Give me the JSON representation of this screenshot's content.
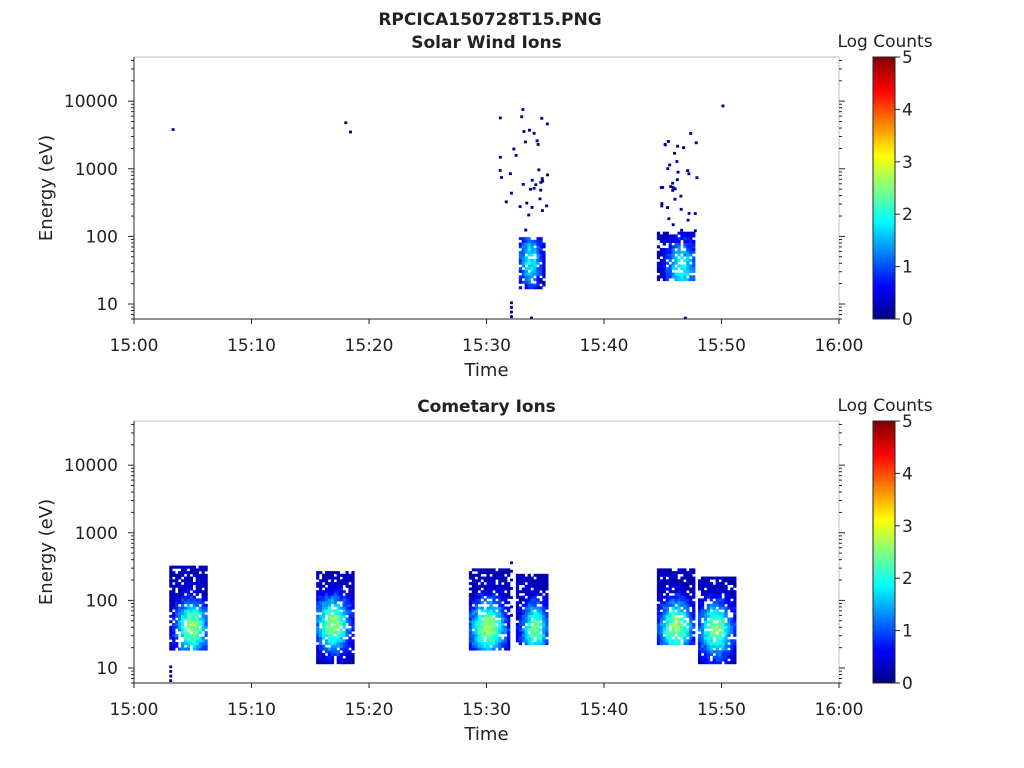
{
  "figure_title": "RPCICA150728T15.PNG",
  "chart_data": [
    {
      "type": "heatmap",
      "title": "Solar Wind Ions",
      "xlabel": "Time",
      "ylabel": "Energy (eV)",
      "x_ticks": [
        "15:00",
        "15:10",
        "15:20",
        "15:30",
        "15:40",
        "15:50",
        "16:00"
      ],
      "xlim": [
        "15:00",
        "16:00"
      ],
      "y_scale": "log",
      "y_ticks": [
        "10",
        "100",
        "1000",
        "10000"
      ],
      "ylim": [
        6,
        45000
      ],
      "colorbar": {
        "label": "Log Counts",
        "ticks": [
          "0",
          "1",
          "2",
          "3",
          "4",
          "5"
        ],
        "range": [
          0,
          5
        ],
        "colormap": "jet"
      },
      "grid": false,
      "blobs": [
        {
          "t0": 32.6,
          "t1": 34.8,
          "e0": 17,
          "e1": 100,
          "peak": 1.9,
          "tpeak": 33.6,
          "epeak": 45,
          "density": 0.75
        },
        {
          "t0": 44.5,
          "t1": 47.5,
          "e0": 22,
          "e1": 120,
          "peak": 1.9,
          "tpeak": 46.5,
          "epeak": 35,
          "density": 0.75
        }
      ],
      "scatter": [
        {
          "t0": 31.0,
          "t1": 35.3,
          "e0": 120,
          "e1": 8500,
          "n": 38,
          "v": 0.1
        },
        {
          "t0": 44.6,
          "t1": 47.8,
          "e0": 120,
          "e1": 3500,
          "n": 36,
          "v": 0.1
        }
      ],
      "points": [
        {
          "t": 3.2,
          "e": 3800,
          "v": 0.1
        },
        {
          "t": 17.9,
          "e": 4800,
          "v": 0.1
        },
        {
          "t": 18.3,
          "e": 3500,
          "v": 0.1
        },
        {
          "t": 50.0,
          "e": 8500,
          "v": 0.1
        },
        {
          "t": 32.0,
          "e": 6.5,
          "v": 0.1
        },
        {
          "t": 32.0,
          "e": 7.6,
          "v": 0.1
        },
        {
          "t": 32.0,
          "e": 8.9,
          "v": 0.1
        },
        {
          "t": 32.0,
          "e": 10.4,
          "v": 0.1
        },
        {
          "t": 33.7,
          "e": 6.2,
          "v": 0.1
        },
        {
          "t": 46.8,
          "e": 6.2,
          "v": 0.1
        }
      ]
    },
    {
      "type": "heatmap",
      "title": "Cometary Ions",
      "xlabel": "Time",
      "ylabel": "Energy (eV)",
      "x_ticks": [
        "15:00",
        "15:10",
        "15:20",
        "15:30",
        "15:40",
        "15:50",
        "16:00"
      ],
      "xlim": [
        "15:00",
        "16:00"
      ],
      "y_scale": "log",
      "y_ticks": [
        "10",
        "100",
        "1000",
        "10000"
      ],
      "ylim": [
        6,
        45000
      ],
      "colorbar": {
        "label": "Log Counts",
        "ticks": [
          "0",
          "1",
          "2",
          "3",
          "4",
          "5"
        ],
        "range": [
          0,
          5
        ],
        "colormap": "jet"
      },
      "grid": false,
      "blobs": [
        {
          "t0": 3.0,
          "t1": 6.0,
          "e0": 18,
          "e1": 320,
          "peak": 2.6,
          "tpeak": 4.8,
          "epeak": 40,
          "density": 0.85
        },
        {
          "t0": 15.5,
          "t1": 18.7,
          "e0": 12,
          "e1": 260,
          "peak": 2.6,
          "tpeak": 16.8,
          "epeak": 45,
          "density": 0.85
        },
        {
          "t0": 28.4,
          "t1": 31.8,
          "e0": 18,
          "e1": 300,
          "peak": 2.6,
          "tpeak": 30.0,
          "epeak": 40,
          "density": 0.85
        },
        {
          "t0": 32.5,
          "t1": 35.0,
          "e0": 22,
          "e1": 240,
          "peak": 2.4,
          "tpeak": 34.0,
          "epeak": 38,
          "density": 0.85
        },
        {
          "t0": 44.5,
          "t1": 47.6,
          "e0": 22,
          "e1": 300,
          "peak": 2.6,
          "tpeak": 46.0,
          "epeak": 40,
          "density": 0.85
        },
        {
          "t0": 47.8,
          "t1": 51.0,
          "e0": 12,
          "e1": 230,
          "peak": 2.5,
          "tpeak": 49.4,
          "epeak": 38,
          "density": 0.85
        }
      ],
      "scatter": [],
      "points": [
        {
          "t": 3.0,
          "e": 6.5,
          "v": 0.1
        },
        {
          "t": 3.0,
          "e": 7.6,
          "v": 0.1
        },
        {
          "t": 3.0,
          "e": 8.9,
          "v": 0.1
        },
        {
          "t": 3.0,
          "e": 10.4,
          "v": 0.1
        },
        {
          "t": 32.0,
          "e": 60,
          "v": 0.1
        },
        {
          "t": 32.0,
          "e": 80,
          "v": 0.1
        },
        {
          "t": 32.0,
          "e": 110,
          "v": 0.1
        },
        {
          "t": 32.0,
          "e": 150,
          "v": 0.1
        },
        {
          "t": 32.0,
          "e": 200,
          "v": 0.1
        },
        {
          "t": 32.0,
          "e": 270,
          "v": 0.1
        },
        {
          "t": 32.0,
          "e": 360,
          "v": 0.1
        }
      ]
    }
  ]
}
